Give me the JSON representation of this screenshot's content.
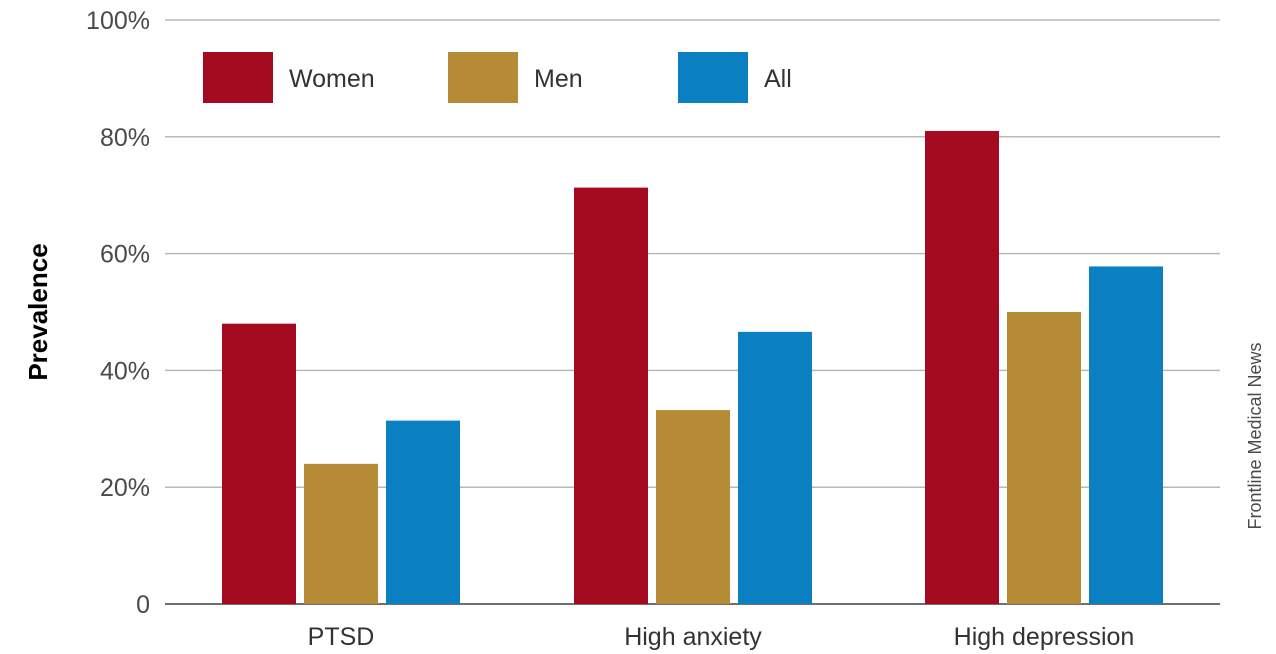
{
  "credit": "Frontline Medical News",
  "colors": {
    "Women": "#a50b20",
    "Men": "#b58b36",
    "All": "#0a7fc2"
  },
  "chart_data": {
    "type": "bar",
    "categories": [
      "PTSD",
      "High anxiety",
      "High depression"
    ],
    "series": [
      {
        "name": "Women",
        "values": [
          48,
          71.3,
          81
        ]
      },
      {
        "name": "Men",
        "values": [
          24,
          33.2,
          50
        ]
      },
      {
        "name": "All",
        "values": [
          31.4,
          46.6,
          57.8
        ]
      }
    ],
    "ylabel": "Prevalence",
    "xlabel": "",
    "ylim": [
      0,
      100
    ],
    "yticks": [
      {
        "value": 0,
        "label": "0"
      },
      {
        "value": 20,
        "label": "20%"
      },
      {
        "value": 40,
        "label": "40%"
      },
      {
        "value": 60,
        "label": "60%"
      },
      {
        "value": 80,
        "label": "80%"
      },
      {
        "value": 100,
        "label": "100%"
      }
    ],
    "grid": true,
    "legend": "top-left"
  }
}
